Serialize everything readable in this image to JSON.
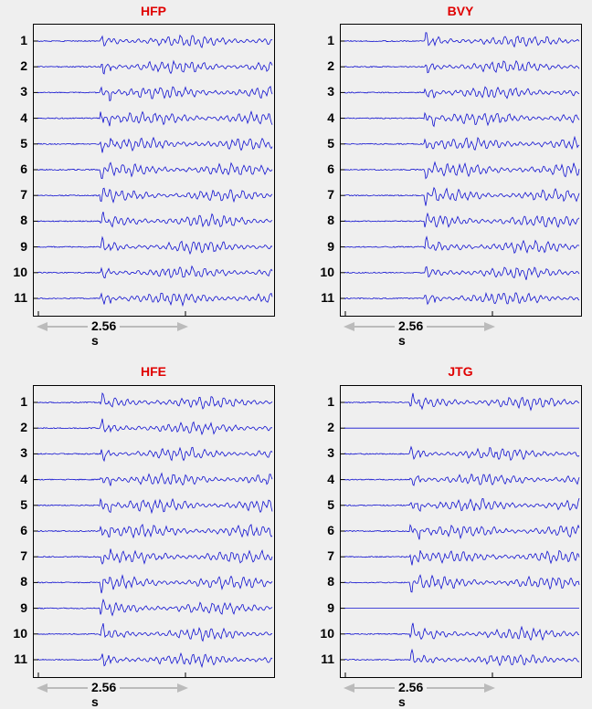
{
  "chart_data": [
    {
      "type": "line",
      "title": "HFP",
      "channels": [
        "1",
        "2",
        "3",
        "4",
        "5",
        "6",
        "7",
        "8",
        "9",
        "10",
        "11"
      ],
      "scale_bar_label": "2.56 s",
      "colors": {
        "trace": "#1010d0",
        "title": "#e00000",
        "scale_bar": "#bbbbbb"
      },
      "onset_fraction": 0.26,
      "active_channels": [
        true,
        true,
        true,
        true,
        true,
        true,
        true,
        true,
        true,
        true,
        true
      ]
    },
    {
      "type": "line",
      "title": "BVY",
      "channels": [
        "1",
        "2",
        "3",
        "4",
        "5",
        "6",
        "7",
        "8",
        "9",
        "10",
        "11"
      ],
      "scale_bar_label": "2.56 s",
      "colors": {
        "trace": "#1010d0",
        "title": "#e00000",
        "scale_bar": "#bbbbbb"
      },
      "onset_fraction": 0.33,
      "active_channels": [
        true,
        true,
        true,
        true,
        true,
        true,
        true,
        true,
        true,
        true,
        true
      ]
    },
    {
      "type": "line",
      "title": "HFE",
      "channels": [
        "1",
        "2",
        "3",
        "4",
        "5",
        "6",
        "7",
        "8",
        "9",
        "10",
        "11"
      ],
      "scale_bar_label": "2.56 s",
      "colors": {
        "trace": "#1010d0",
        "title": "#e00000",
        "scale_bar": "#bbbbbb"
      },
      "onset_fraction": 0.26,
      "active_channels": [
        true,
        true,
        true,
        true,
        true,
        true,
        true,
        true,
        true,
        true,
        true
      ]
    },
    {
      "type": "line",
      "title": "JTG",
      "channels": [
        "1",
        "2",
        "3",
        "4",
        "5",
        "6",
        "7",
        "8",
        "9",
        "10",
        "11"
      ],
      "scale_bar_label": "2.56 s",
      "colors": {
        "trace": "#1010d0",
        "title": "#e00000",
        "scale_bar": "#bbbbbb"
      },
      "onset_fraction": 0.27,
      "active_channels": [
        true,
        false,
        true,
        true,
        true,
        true,
        true,
        true,
        false,
        true,
        true
      ]
    }
  ]
}
